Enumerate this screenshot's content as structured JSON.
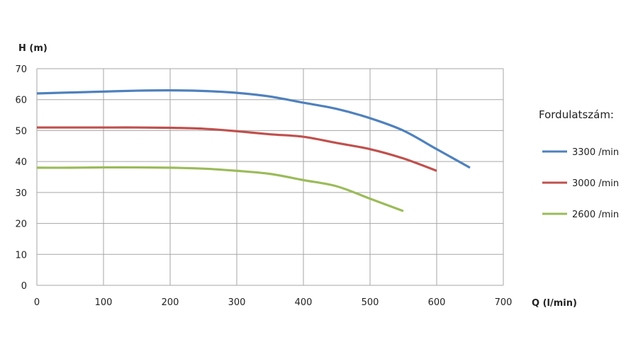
{
  "chart_data": {
    "type": "line",
    "ylabel": "H (m)",
    "xlabel": "Q (l/min)",
    "xlim": [
      0,
      700
    ],
    "ylim": [
      0,
      70
    ],
    "x_ticks": [
      "0",
      "100",
      "200",
      "300",
      "400",
      "500",
      "600",
      "700"
    ],
    "y_ticks": [
      "0",
      "10",
      "20",
      "30",
      "40",
      "50",
      "60",
      "70"
    ],
    "grid": true,
    "legend_title": "Fordulatszám:",
    "legend_position": "right",
    "series": [
      {
        "name": "3300 /min",
        "color": "#4f81bd",
        "x": [
          0,
          50,
          100,
          150,
          200,
          250,
          300,
          350,
          400,
          450,
          500,
          550,
          600,
          650
        ],
        "y": [
          62,
          62.3,
          62.6,
          62.9,
          63,
          62.8,
          62.2,
          61,
          59,
          57,
          54,
          50,
          44,
          38
        ]
      },
      {
        "name": "3000 /min",
        "color": "#c0504d",
        "x": [
          0,
          50,
          100,
          150,
          200,
          250,
          300,
          350,
          400,
          450,
          500,
          550,
          600
        ],
        "y": [
          51,
          51,
          51,
          51,
          50.9,
          50.6,
          49.8,
          48.8,
          48,
          46,
          44,
          41,
          37
        ]
      },
      {
        "name": "2600 /min",
        "color": "#9bbb59",
        "x": [
          0,
          50,
          100,
          150,
          200,
          250,
          300,
          350,
          400,
          450,
          500,
          550
        ],
        "y": [
          38,
          38,
          38.1,
          38.1,
          38,
          37.7,
          37,
          36,
          34,
          32,
          28,
          24
        ]
      }
    ]
  }
}
